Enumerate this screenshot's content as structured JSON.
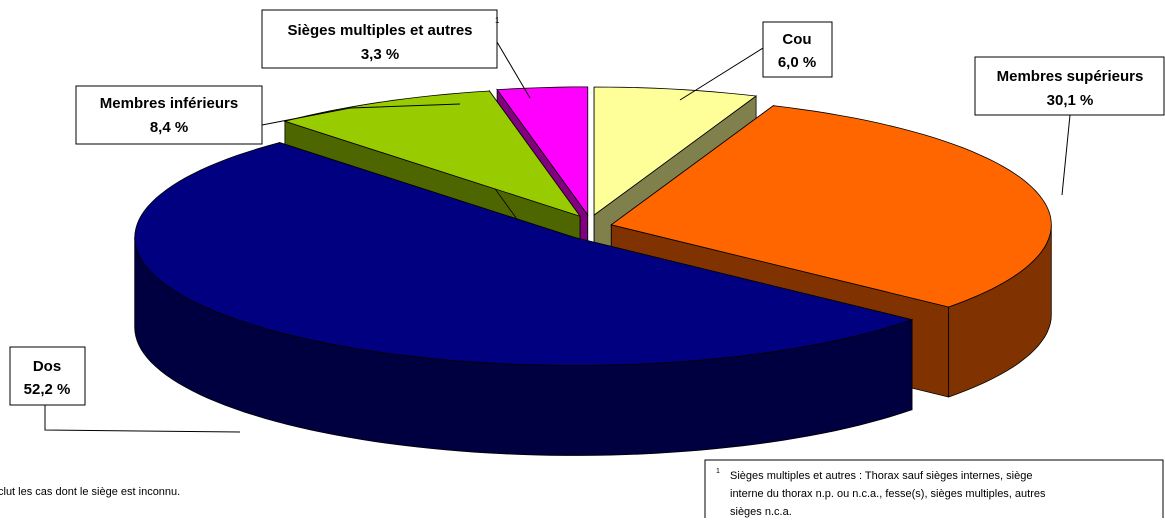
{
  "chart_data": {
    "type": "pie3d",
    "categories": [
      "Cou",
      "Membres supérieurs",
      "Dos",
      "Membres inférieurs",
      "Sièges multiples et autres"
    ],
    "values": [
      6.0,
      30.1,
      52.2,
      8.4,
      3.3
    ],
    "value_labels": [
      "6,0 %",
      "30,1 %",
      "52,2 %",
      "8,4 %",
      "3,3 %"
    ],
    "colors": [
      "#ffff99",
      "#ff6600",
      "#000080",
      "#99cc00",
      "#ff00ff"
    ],
    "footnote_marker": "1",
    "notes": [
      "clut les cas dont le siège est inconnu."
    ],
    "footnote": [
      "Sièges multiples et autres : Thorax sauf sièges internes, siège",
      "interne du thorax n.p. ou n.c.a., fesse(s), sièges multiples, autres",
      "sièges n.c.a."
    ]
  }
}
